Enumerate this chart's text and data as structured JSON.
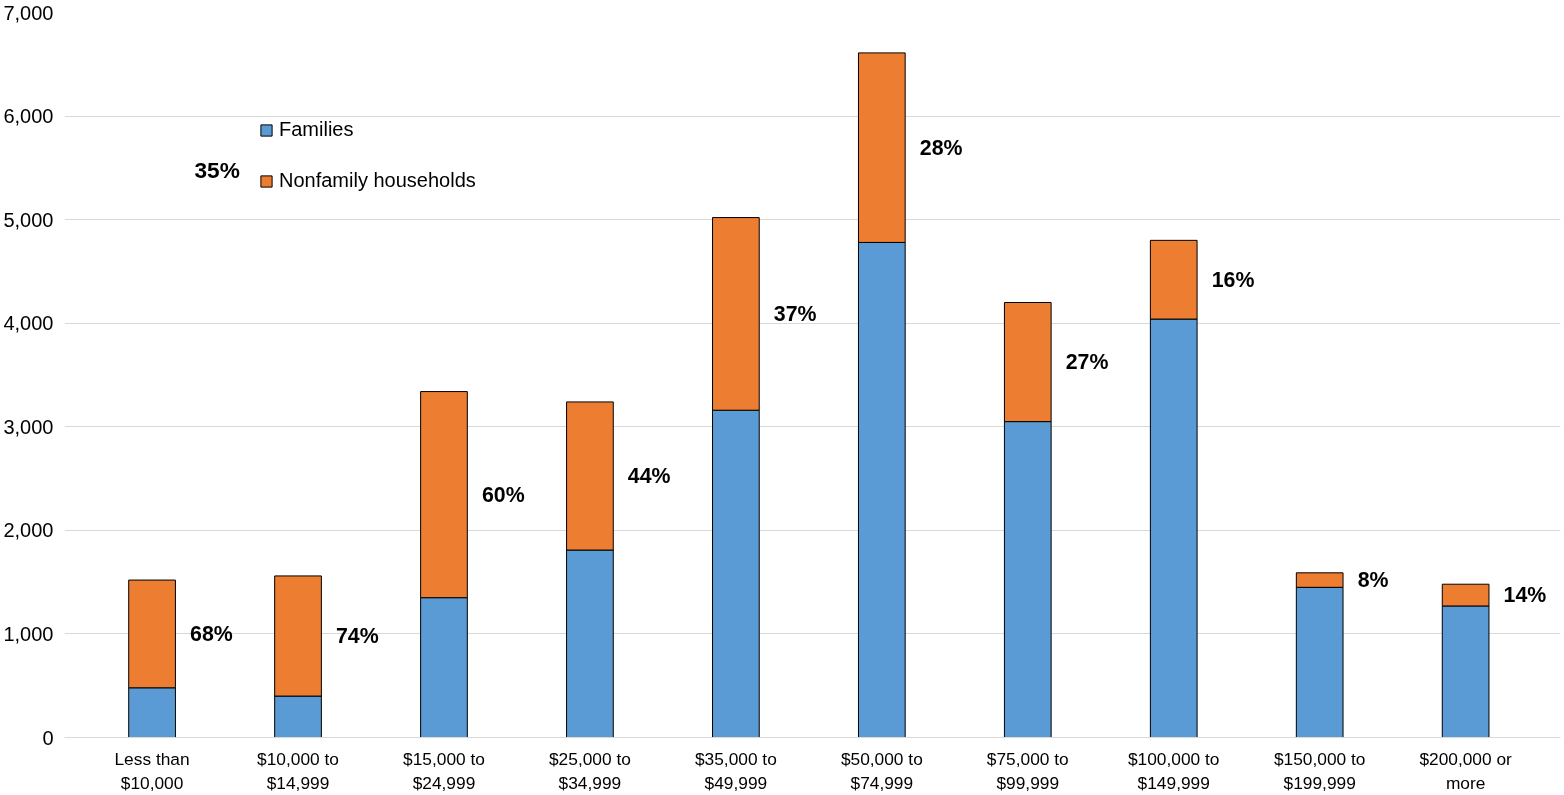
{
  "chart_data": {
    "type": "bar",
    "stacked": true,
    "categories": [
      "Less than $10,000",
      "$10,000 to $14,999",
      "$15,000 to $24,999",
      "$25,000 to $34,999",
      "$35,000 to $49,999",
      "$50,000 to $74,999",
      "$75,000 to $99,999",
      "$100,000 to $149,999",
      "$150,000 to $199,999",
      "$200,000 or more"
    ],
    "series": [
      {
        "name": "Families",
        "color": "#5b9bd5",
        "values": [
          480,
          400,
          1350,
          1810,
          3160,
          4780,
          3050,
          4040,
          1450,
          1270
        ]
      },
      {
        "name": "Nonfamily households",
        "color": "#ed7d31",
        "values": [
          1040,
          1160,
          1990,
          1430,
          1860,
          1830,
          1150,
          760,
          140,
          210
        ]
      }
    ],
    "ylim": [
      0,
      7000
    ],
    "yticks": [
      {
        "value": 0,
        "label": "0"
      },
      {
        "value": 1000,
        "label": "1,000"
      },
      {
        "value": 2000,
        "label": "2,000"
      },
      {
        "value": 3000,
        "label": "3,000"
      },
      {
        "value": 4000,
        "label": "4,000"
      },
      {
        "value": 5000,
        "label": "5,000"
      },
      {
        "value": 6000,
        "label": "6,000"
      },
      {
        "value": 7000,
        "label": "7,000"
      }
    ],
    "grid": "y",
    "legend": "top left",
    "annotations": [
      "35%",
      "68%",
      "74%",
      "60%",
      "44%",
      "37%",
      "28%",
      "27%",
      "16%",
      "8%",
      "14%"
    ]
  }
}
